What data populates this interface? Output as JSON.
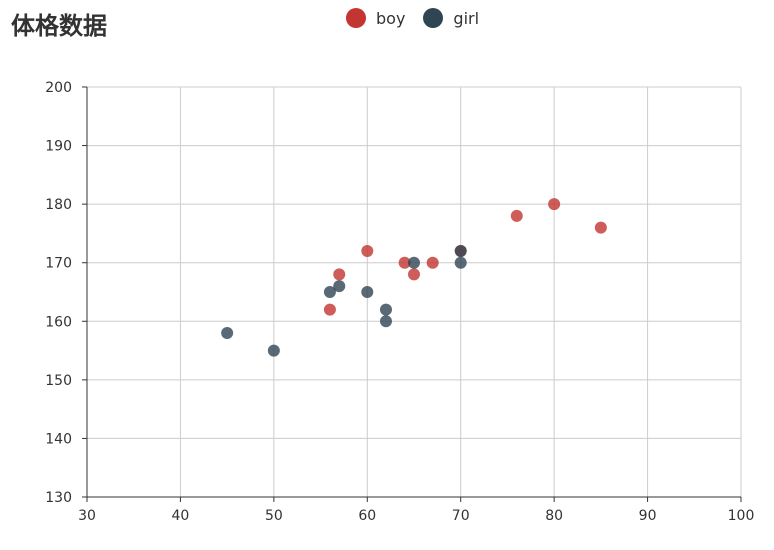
{
  "chart_data": {
    "type": "scatter",
    "title": "体格数据",
    "xlabel": "",
    "ylabel": "",
    "xlim": [
      30,
      100
    ],
    "ylim": [
      130,
      200
    ],
    "x_ticks": [
      "30",
      "40",
      "50",
      "60",
      "70",
      "80",
      "90",
      "100"
    ],
    "y_ticks": [
      "130",
      "140",
      "150",
      "160",
      "170",
      "180",
      "190",
      "200"
    ],
    "grid": true,
    "legend_position": "top-center",
    "series": [
      {
        "name": "boy",
        "color": "#c23531",
        "points": [
          [
            56,
            162
          ],
          [
            57,
            168
          ],
          [
            60,
            172
          ],
          [
            64,
            170
          ],
          [
            65,
            168
          ],
          [
            67,
            170
          ],
          [
            70,
            172
          ],
          [
            76,
            178
          ],
          [
            80,
            180
          ],
          [
            85,
            176
          ]
        ]
      },
      {
        "name": "girl",
        "color": "#2f4554",
        "points": [
          [
            45,
            158
          ],
          [
            50,
            155
          ],
          [
            56,
            165
          ],
          [
            57,
            166
          ],
          [
            60,
            165
          ],
          [
            62,
            162
          ],
          [
            62,
            160
          ],
          [
            65,
            170
          ],
          [
            70,
            170
          ],
          [
            70,
            172
          ]
        ]
      }
    ]
  }
}
